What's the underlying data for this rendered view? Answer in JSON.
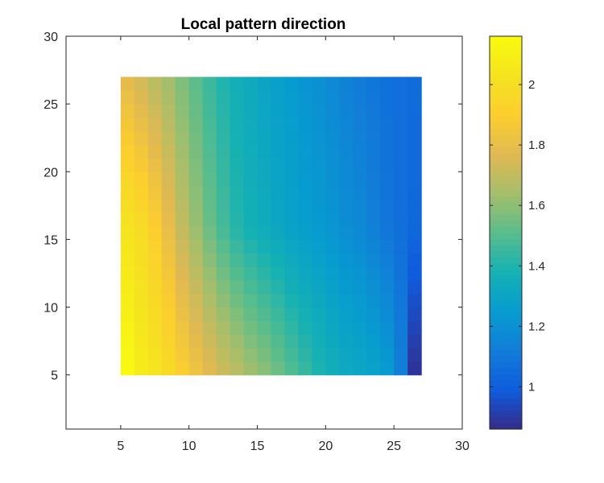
{
  "chart_data": {
    "type": "heatmap",
    "title": "Local pattern direction",
    "xlabel": "",
    "ylabel": "",
    "xlim": [
      1,
      30
    ],
    "ylim": [
      1,
      30
    ],
    "xticks": [
      5,
      10,
      15,
      20,
      25,
      30
    ],
    "yticks": [
      5,
      10,
      15,
      20,
      25,
      30
    ],
    "grid": false,
    "x_range": [
      5,
      27
    ],
    "y_range": [
      5,
      27
    ],
    "colormap": "parula",
    "colorbar": {
      "location": "right",
      "clim": [
        0.86,
        2.16
      ],
      "ticks": [
        1,
        1.2,
        1.4,
        1.6,
        1.8,
        2
      ],
      "tick_labels": [
        "1",
        "1.2",
        "1.4",
        "1.6",
        "1.8",
        "2"
      ]
    },
    "column_profile_bottom": [
      2.15,
      2.08,
      2.04,
      1.98,
      1.9,
      1.84,
      1.78,
      1.73,
      1.69,
      1.64,
      1.6,
      1.55,
      1.5,
      1.45,
      1.4,
      1.36,
      1.33,
      1.31,
      1.29,
      1.25,
      1.13,
      0.88
    ],
    "column_profile_middle": [
      2.03,
      1.98,
      1.9,
      1.8,
      1.7,
      1.62,
      1.54,
      1.47,
      1.41,
      1.37,
      1.34,
      1.31,
      1.28,
      1.26,
      1.24,
      1.22,
      1.19,
      1.17,
      1.13,
      1.09,
      1.06,
      1.04
    ],
    "column_profile_top": [
      1.78,
      1.73,
      1.68,
      1.63,
      1.57,
      1.51,
      1.45,
      1.4,
      1.36,
      1.33,
      1.3,
      1.27,
      1.25,
      1.22,
      1.2,
      1.17,
      1.14,
      1.11,
      1.09,
      1.07,
      1.06,
      1.05
    ]
  },
  "colors": {
    "axes": "#262626",
    "background": "#ffffff"
  }
}
